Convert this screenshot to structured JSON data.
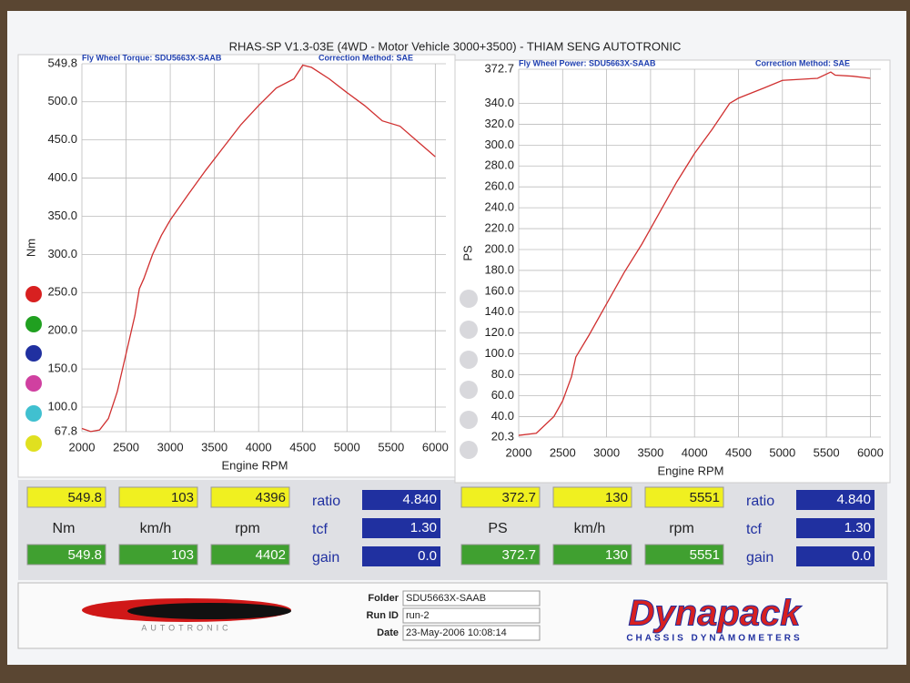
{
  "title": "RHAS-SP V1.3-03E  (4WD - Motor Vehicle 3000+3500) - THIAM SENG AUTOTRONIC",
  "chart_data": [
    {
      "type": "line",
      "subtitle": "Fly Wheel Torque: SDU5663X-SAAB",
      "correction": "Correction Method: SAE",
      "x_label": "Engine RPM",
      "y_label": "Nm",
      "xlim": [
        2000,
        6120
      ],
      "xticks": [
        2000,
        2500,
        3000,
        3500,
        4000,
        4500,
        5000,
        5500,
        6000
      ],
      "ylim": [
        67.8,
        549.8
      ],
      "yticks": [
        67.8,
        {
          "value": 100,
          "label": "100.0"
        },
        {
          "value": 150,
          "label": "150.0"
        },
        {
          "value": 200,
          "label": "200.0"
        },
        {
          "value": 250,
          "label": "250.0"
        },
        {
          "value": 300,
          "label": "300.0"
        },
        {
          "value": 350,
          "label": "350.0"
        },
        {
          "value": 400,
          "label": "400.0"
        },
        {
          "value": 450,
          "label": "450.0"
        },
        {
          "value": 500,
          "label": "500.0"
        },
        549.8
      ],
      "grid": true,
      "x": [
        2000,
        2100,
        2200,
        2300,
        2400,
        2500,
        2600,
        2650,
        2700,
        2800,
        2900,
        3000,
        3200,
        3400,
        3600,
        3800,
        4000,
        4200,
        4400,
        4500,
        4600,
        4800,
        5000,
        5200,
        5400,
        5600,
        5800,
        6000
      ],
      "series": [
        {
          "color": "#d03030",
          "values": [
            72,
            68,
            70,
            85,
            120,
            170,
            220,
            255,
            268,
            300,
            325,
            345,
            378,
            410,
            440,
            470,
            495,
            518,
            530,
            548,
            545,
            530,
            512,
            495,
            475,
            468,
            448,
            428
          ]
        }
      ]
    },
    {
      "type": "line",
      "subtitle": "Fly Wheel Power: SDU5663X-SAAB",
      "correction": "Correction Method: SAE",
      "x_label": "Engine RPM",
      "y_label": "PS",
      "xlim": [
        2000,
        6120
      ],
      "xticks": [
        2000,
        2500,
        3000,
        3500,
        4000,
        4500,
        5000,
        5500,
        6000
      ],
      "ylim": [
        20.3,
        372.7
      ],
      "yticks": [
        20.3,
        {
          "value": 40,
          "label": "40.0"
        },
        {
          "value": 60,
          "label": "60.0"
        },
        {
          "value": 80,
          "label": "80.0"
        },
        {
          "value": 100,
          "label": "100.0"
        },
        {
          "value": 120,
          "label": "120.0"
        },
        {
          "value": 140,
          "label": "140.0"
        },
        {
          "value": 160,
          "label": "160.0"
        },
        {
          "value": 180,
          "label": "180.0"
        },
        {
          "value": 200,
          "label": "200.0"
        },
        {
          "value": 220,
          "label": "220.0"
        },
        {
          "value": 240,
          "label": "240.0"
        },
        {
          "value": 260,
          "label": "260.0"
        },
        {
          "value": 280,
          "label": "280.0"
        },
        {
          "value": 300,
          "label": "300.0"
        },
        {
          "value": 320,
          "label": "320.0"
        },
        {
          "value": 340,
          "label": "340.0"
        },
        372.7
      ],
      "grid": true,
      "x": [
        2000,
        2200,
        2400,
        2500,
        2600,
        2650,
        2800,
        3000,
        3200,
        3400,
        3600,
        3800,
        4000,
        4200,
        4400,
        4500,
        4800,
        5000,
        5200,
        5400,
        5550,
        5600,
        5800,
        6000
      ],
      "series": [
        {
          "color": "#d03030",
          "values": [
            22,
            24,
            40,
            55,
            78,
            97,
            118,
            148,
            178,
            205,
            235,
            265,
            292,
            315,
            340,
            345,
            355,
            362,
            363,
            364,
            370,
            367,
            366,
            364
          ]
        }
      ]
    }
  ],
  "readouts": [
    {
      "top": [
        "549.8",
        "103",
        "4396"
      ],
      "units": [
        "Nm",
        "km/h",
        "rpm"
      ],
      "bottom": [
        "549.8",
        "103",
        "4402"
      ],
      "params": [
        {
          "name": "ratio",
          "value": "4.840"
        },
        {
          "name": "tcf",
          "value": "1.30"
        },
        {
          "name": "gain",
          "value": "0.0"
        }
      ]
    },
    {
      "top": [
        "372.7",
        "130",
        "5551"
      ],
      "units": [
        "PS",
        "km/h",
        "rpm"
      ],
      "bottom": [
        "372.7",
        "130",
        "5551"
      ],
      "params": [
        {
          "name": "ratio",
          "value": "4.840"
        },
        {
          "name": "tcf",
          "value": "1.30"
        },
        {
          "name": "gain",
          "value": "0.0"
        }
      ]
    }
  ],
  "footer": {
    "brand": "AUTOTRONIC",
    "fields": [
      {
        "label": "Folder",
        "value": "SDU5663X-SAAB"
      },
      {
        "label": "Run ID",
        "value": "run-2"
      },
      {
        "label": "Date",
        "value": "23-May-2006  10:08:14"
      }
    ],
    "logo": "Dynapack",
    "logo_sub": "CHASSIS DYNAMOMETERS"
  }
}
